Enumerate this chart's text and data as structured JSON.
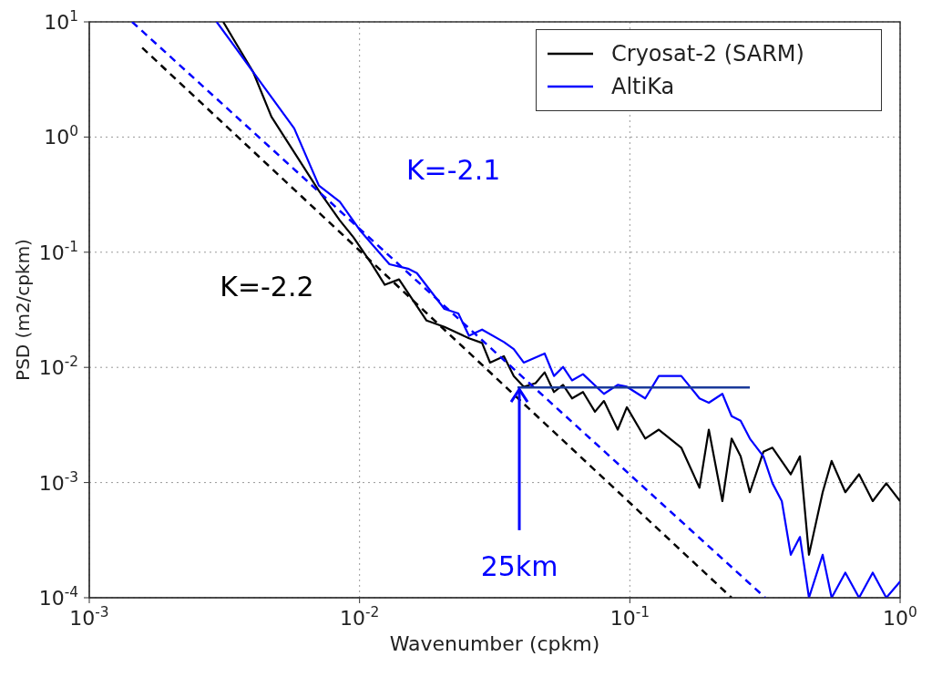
{
  "chart_data": {
    "type": "line",
    "xlabel": "Wavenumber (cpkm)",
    "ylabel": "PSD (m2/cpkm)",
    "log": "xy",
    "grid": true,
    "legend": "top right",
    "line_style": "solid",
    "marker": "none",
    "xlim": [
      0.001,
      1
    ],
    "ylim": [
      0.0001,
      10
    ],
    "xticks": [
      {
        "value": 0.001,
        "label": "10$^{-3}$"
      },
      {
        "value": 0.01,
        "label": "10$^{-2}$"
      },
      {
        "value": 0.1,
        "label": "10$^{-1}$"
      },
      {
        "value": 1,
        "label": "10$^{0}$"
      }
    ],
    "yticks": [
      {
        "value": 0.0001,
        "label": "10$^{-4}$"
      },
      {
        "value": 0.001,
        "label": "10$^{-3}$"
      },
      {
        "value": 0.01,
        "label": "10$^{-2}$"
      },
      {
        "value": 0.1,
        "label": "10$^{-1}$"
      },
      {
        "value": 1,
        "label": "10$^{0}$"
      },
      {
        "value": 10,
        "label": "10$^{1}$"
      }
    ],
    "series": [
      {
        "name": "Cryosat-2 (SARM)",
        "color": "#000000",
        "x": [
          0.00313,
          0.00404,
          0.00472,
          0.00707,
          0.00845,
          0.00949,
          0.0111,
          0.0124,
          0.014,
          0.0177,
          0.0206,
          0.0254,
          0.0284,
          0.0304,
          0.0342,
          0.0372,
          0.0405,
          0.0448,
          0.0484,
          0.0524,
          0.0566,
          0.0611,
          0.0671,
          0.0743,
          0.0802,
          0.0902,
          0.0975,
          0.114,
          0.128,
          0.155,
          0.181,
          0.196,
          0.22,
          0.238,
          0.257,
          0.278,
          0.312,
          0.337,
          0.394,
          0.426,
          0.46,
          0.517,
          0.558,
          0.627,
          0.705,
          0.792,
          0.889,
          1.0
        ],
        "values": [
          10,
          3.67,
          1.5,
          0.341,
          0.189,
          0.135,
          0.0787,
          0.0521,
          0.0581,
          0.0255,
          0.0225,
          0.0179,
          0.0163,
          0.011,
          0.0125,
          0.00842,
          0.00679,
          0.0073,
          0.00906,
          0.00611,
          0.00705,
          0.00538,
          0.00611,
          0.00412,
          0.00511,
          0.00288,
          0.00451,
          0.00241,
          0.00288,
          0.00201,
          0.000902,
          0.00288,
          0.00069,
          0.00241,
          0.00169,
          0.000824,
          0.00185,
          0.00201,
          0.00118,
          0.00169,
          0.000236,
          0.000824,
          0.00154,
          0.000824,
          0.00118,
          0.00069,
          0.000986,
          0.00069
        ]
      },
      {
        "name": "AltiKa",
        "color": "#0000ff",
        "x": [
          0.00296,
          0.00404,
          0.00573,
          0.00707,
          0.00845,
          0.0101,
          0.0129,
          0.0151,
          0.0163,
          0.0206,
          0.0232,
          0.0254,
          0.0284,
          0.0342,
          0.0372,
          0.0405,
          0.0484,
          0.0524,
          0.0566,
          0.0611,
          0.0671,
          0.0802,
          0.0902,
          0.0975,
          0.114,
          0.128,
          0.155,
          0.181,
          0.196,
          0.22,
          0.238,
          0.257,
          0.278,
          0.312,
          0.337,
          0.365,
          0.394,
          0.426,
          0.46,
          0.517,
          0.558,
          0.627,
          0.705,
          0.792,
          0.889,
          1.0
        ],
        "values": [
          10,
          3.67,
          1.19,
          0.379,
          0.275,
          0.152,
          0.0787,
          0.072,
          0.0658,
          0.0322,
          0.0294,
          0.0188,
          0.0213,
          0.0166,
          0.0144,
          0.011,
          0.0132,
          0.00842,
          0.0101,
          0.00771,
          0.00873,
          0.00589,
          0.00705,
          0.00679,
          0.00538,
          0.00842,
          0.00842,
          0.00538,
          0.00493,
          0.00589,
          0.00377,
          0.00344,
          0.00241,
          0.00169,
          0.000986,
          0.00069,
          0.000236,
          0.000337,
          0.0001,
          0.000236,
          0.0001,
          0.000165,
          0.0001,
          0.000165,
          0.0001,
          0.000138
        ]
      },
      {
        "color": "#0000ff",
        "line_style": "dashed",
        "x": [
          0.00144,
          0.317
        ],
        "values": [
          10,
          0.0001
        ]
      },
      {
        "color": "#000000",
        "line_style": "dashed",
        "x": [
          0.00157,
          0.238
        ],
        "values": [
          5.96,
          0.0001
        ]
      },
      {
        "color": "#1a3a9a",
        "x": [
          0.0384,
          0.278
        ],
        "values": [
          0.0067,
          0.0067
        ]
      }
    ],
    "annotations": [
      "K=-2.1",
      "K=-2.2",
      {
        "text": "25km",
        "x": 0.0384,
        "y": 0.0067
      }
    ]
  }
}
